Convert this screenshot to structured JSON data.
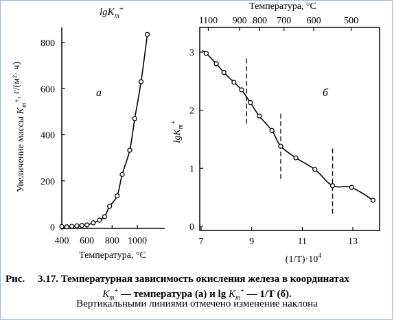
{
  "caption": {
    "figure_label": "Рис.",
    "figure_number": "3.17.",
    "line1": "Температурная зависимость окисления железа в координатах",
    "line2": "K_m^+ — температура (а) и lg K_m^+ — 1/T (б).",
    "line3": "Вертикальными линиями отмечено изменение наклона"
  },
  "chart_data": [
    {
      "type": "scatter",
      "panel_label": "а",
      "title": "lgK_m^+",
      "xlabel": "Температура, °C",
      "ylabel": "Увеличение массы K_m^+, г/(м²· ч)",
      "xlim": [
        400,
        1200
      ],
      "ylim": [
        0,
        870
      ],
      "xticks": [
        400,
        600,
        800,
        1000
      ],
      "yticks": [
        0,
        200,
        400,
        600,
        800
      ],
      "grid": false,
      "series": [
        {
          "x": [
            400,
            440,
            480,
            520,
            560,
            600,
            650,
            700,
            740,
            780,
            840,
            880,
            940,
            980,
            1030,
            1080
          ],
          "y": [
            2,
            1,
            3,
            5,
            7,
            9,
            18,
            30,
            45,
            90,
            135,
            228,
            333,
            470,
            630,
            835
          ]
        }
      ]
    },
    {
      "type": "scatter",
      "panel_label": "б",
      "xlabel": "(1/T)·10^4",
      "ylabel": "lgK_m^+",
      "top_axis_label": "Температура, °C",
      "top_ticks": [
        "1100",
        "900",
        "800",
        "700",
        "600",
        "500"
      ],
      "top_tick_temps": [
        1100,
        900,
        800,
        700,
        600,
        500
      ],
      "xlim": [
        7,
        14
      ],
      "ylim": [
        0,
        3.2
      ],
      "xticks": [
        7,
        9,
        11,
        13
      ],
      "yticks": [
        0,
        1,
        2,
        3
      ],
      "grid": false,
      "series": [
        {
          "x": [
            7.2,
            7.6,
            7.9,
            8.3,
            8.6,
            8.95,
            9.3,
            9.8,
            10.15,
            10.75,
            11.5,
            12.2,
            12.95,
            13.8
          ],
          "y": [
            2.98,
            2.8,
            2.65,
            2.48,
            2.35,
            2.13,
            1.9,
            1.65,
            1.38,
            1.18,
            0.98,
            0.7,
            0.67,
            0.45
          ]
        }
      ],
      "slope_change_x": [
        8.8,
        10.15,
        12.2
      ]
    }
  ]
}
